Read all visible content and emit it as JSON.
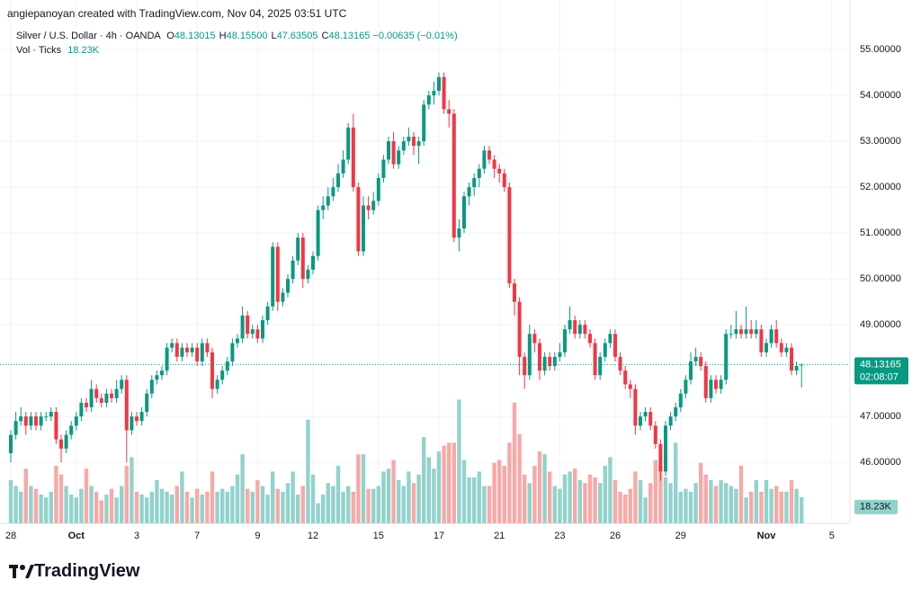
{
  "header": {
    "credit": "angiepanoyan created with TradingView.com, Nov 04, 2025 03:51 UTC",
    "symbol": "Silver / U.S. Dollar · 4h · OANDA",
    "ohlc": [
      {
        "label": "O",
        "value": "48.13015"
      },
      {
        "label": "H",
        "value": "48.15500"
      },
      {
        "label": "L",
        "value": "47.63505"
      },
      {
        "label": "C",
        "value": "48.13165"
      }
    ],
    "change": "−0.00635 (−0.01%)",
    "volume_label": "Vol · Ticks",
    "volume_value": "18.23K"
  },
  "chart_data": {
    "type": "candlestick",
    "categories": [
      "28",
      null,
      null,
      null,
      null,
      null,
      null,
      null,
      null,
      null,
      null,
      null,
      null,
      "Oct",
      null,
      null,
      null,
      null,
      null,
      null,
      null,
      null,
      null,
      null,
      null,
      "3",
      null,
      null,
      null,
      null,
      null,
      null,
      null,
      null,
      null,
      null,
      null,
      "7",
      null,
      null,
      null,
      null,
      null,
      null,
      null,
      null,
      null,
      null,
      null,
      "9",
      null,
      null,
      null,
      null,
      null,
      null,
      null,
      null,
      null,
      null,
      "12",
      null,
      null,
      null,
      null,
      null,
      null,
      null,
      null,
      null,
      null,
      null,
      null,
      "15",
      null,
      null,
      null,
      null,
      null,
      null,
      null,
      null,
      null,
      null,
      null,
      "17",
      null,
      null,
      null,
      null,
      null,
      null,
      null,
      null,
      null,
      null,
      null,
      "21",
      null,
      null,
      null,
      null,
      null,
      null,
      null,
      null,
      null,
      null,
      null,
      "23",
      null,
      null,
      null,
      null,
      null,
      null,
      null,
      null,
      null,
      null,
      "26",
      null,
      null,
      null,
      null,
      null,
      null,
      null,
      null,
      null,
      null,
      null,
      null,
      "29",
      null,
      null,
      null,
      null,
      null,
      null,
      null,
      null,
      null,
      null,
      null,
      null,
      null,
      null,
      null,
      null,
      "Nov",
      null,
      null,
      null,
      null,
      null,
      null,
      null,
      null,
      null,
      null,
      null,
      null,
      "5",
      null,
      null,
      null
    ],
    "candles": [
      [
        46.2,
        46.7,
        46.0,
        46.6
      ],
      [
        46.6,
        47.1,
        46.5,
        46.9
      ],
      [
        46.9,
        47.2,
        46.8,
        47.0
      ],
      [
        47.0,
        47.1,
        46.6,
        46.8
      ],
      [
        46.8,
        47.1,
        46.7,
        47.0
      ],
      [
        47.0,
        47.1,
        46.7,
        46.8
      ],
      [
        46.8,
        47.1,
        46.7,
        47.0
      ],
      [
        47.0,
        47.1,
        46.9,
        47.0
      ],
      [
        47.0,
        47.2,
        46.9,
        47.1
      ],
      [
        47.1,
        47.2,
        46.4,
        46.5
      ],
      [
        46.5,
        46.6,
        46.0,
        46.3
      ],
      [
        46.3,
        46.7,
        46.2,
        46.6
      ],
      [
        46.6,
        46.9,
        46.5,
        46.8
      ],
      [
        46.8,
        47.1,
        46.7,
        47.0
      ],
      [
        47.0,
        47.4,
        46.9,
        47.3
      ],
      [
        47.3,
        47.4,
        47.1,
        47.2
      ],
      [
        47.2,
        47.8,
        47.1,
        47.6
      ],
      [
        47.6,
        47.7,
        47.3,
        47.4
      ],
      [
        47.4,
        47.5,
        47.2,
        47.3
      ],
      [
        47.3,
        47.6,
        47.2,
        47.5
      ],
      [
        47.5,
        47.6,
        47.3,
        47.4
      ],
      [
        47.4,
        47.8,
        47.3,
        47.6
      ],
      [
        47.6,
        47.9,
        47.5,
        47.8
      ],
      [
        47.8,
        47.9,
        46.0,
        46.7
      ],
      [
        46.7,
        47.1,
        46.6,
        47.0
      ],
      [
        47.0,
        47.1,
        46.8,
        46.9
      ],
      [
        46.9,
        47.2,
        46.8,
        47.1
      ],
      [
        47.1,
        47.6,
        47.0,
        47.5
      ],
      [
        47.5,
        47.9,
        47.4,
        47.8
      ],
      [
        47.8,
        48.0,
        47.7,
        47.9
      ],
      [
        47.9,
        48.1,
        47.8,
        48.0
      ],
      [
        48.0,
        48.6,
        47.9,
        48.5
      ],
      [
        48.5,
        48.7,
        48.4,
        48.6
      ],
      [
        48.6,
        48.7,
        48.2,
        48.3
      ],
      [
        48.3,
        48.6,
        48.2,
        48.5
      ],
      [
        48.5,
        48.6,
        48.3,
        48.4
      ],
      [
        48.4,
        48.6,
        48.3,
        48.5
      ],
      [
        48.5,
        48.6,
        48.1,
        48.2
      ],
      [
        48.2,
        48.7,
        48.1,
        48.6
      ],
      [
        48.6,
        48.7,
        48.3,
        48.4
      ],
      [
        48.4,
        48.5,
        47.4,
        47.6
      ],
      [
        47.6,
        47.9,
        47.5,
        47.8
      ],
      [
        47.8,
        48.1,
        47.7,
        48.0
      ],
      [
        48.0,
        48.3,
        47.9,
        48.2
      ],
      [
        48.2,
        48.7,
        48.1,
        48.6
      ],
      [
        48.6,
        48.8,
        48.5,
        48.7
      ],
      [
        48.7,
        49.4,
        48.6,
        49.2
      ],
      [
        49.2,
        49.3,
        48.7,
        48.8
      ],
      [
        48.8,
        49.0,
        48.7,
        48.9
      ],
      [
        48.9,
        49.0,
        48.6,
        48.7
      ],
      [
        48.7,
        49.2,
        48.6,
        49.1
      ],
      [
        49.1,
        49.5,
        49.0,
        49.4
      ],
      [
        49.4,
        50.8,
        49.3,
        50.7
      ],
      [
        50.7,
        50.8,
        49.3,
        49.5
      ],
      [
        49.5,
        49.8,
        49.4,
        49.7
      ],
      [
        49.7,
        50.1,
        49.6,
        50.0
      ],
      [
        50.0,
        50.5,
        49.9,
        50.4
      ],
      [
        50.4,
        51.0,
        50.3,
        50.9
      ],
      [
        50.9,
        51.0,
        49.8,
        50.0
      ],
      [
        50.0,
        50.3,
        49.9,
        50.2
      ],
      [
        50.2,
        50.6,
        50.1,
        50.5
      ],
      [
        50.5,
        51.6,
        50.4,
        51.5
      ],
      [
        51.5,
        51.8,
        51.3,
        51.6
      ],
      [
        51.6,
        52.0,
        51.5,
        51.8
      ],
      [
        51.8,
        52.2,
        51.7,
        52.0
      ],
      [
        52.0,
        52.5,
        51.9,
        52.3
      ],
      [
        52.3,
        52.8,
        52.2,
        52.6
      ],
      [
        52.6,
        53.4,
        52.5,
        53.3
      ],
      [
        53.3,
        53.6,
        51.9,
        52.0
      ],
      [
        52.0,
        52.1,
        50.5,
        50.6
      ],
      [
        50.6,
        51.8,
        50.5,
        51.6
      ],
      [
        51.6,
        51.8,
        51.3,
        51.5
      ],
      [
        51.5,
        51.9,
        51.4,
        51.7
      ],
      [
        51.7,
        52.3,
        51.6,
        52.2
      ],
      [
        52.2,
        52.7,
        52.1,
        52.6
      ],
      [
        52.6,
        53.1,
        52.5,
        53.0
      ],
      [
        53.0,
        53.2,
        52.4,
        52.5
      ],
      [
        52.5,
        52.9,
        52.4,
        52.8
      ],
      [
        52.8,
        53.1,
        52.7,
        53.0
      ],
      [
        53.0,
        53.3,
        52.9,
        53.1
      ],
      [
        53.1,
        53.2,
        52.7,
        52.9
      ],
      [
        52.9,
        53.1,
        52.5,
        53.0
      ],
      [
        53.0,
        53.9,
        52.9,
        53.8
      ],
      [
        53.8,
        54.1,
        53.7,
        54.0
      ],
      [
        54.0,
        54.3,
        53.8,
        54.1
      ],
      [
        54.1,
        54.5,
        54.0,
        54.4
      ],
      [
        54.4,
        54.5,
        53.6,
        53.7
      ],
      [
        53.7,
        53.9,
        53.3,
        53.6
      ],
      [
        53.6,
        53.7,
        50.8,
        50.9
      ],
      [
        50.9,
        51.3,
        50.6,
        51.1
      ],
      [
        51.1,
        51.9,
        51.0,
        51.8
      ],
      [
        51.8,
        52.1,
        51.6,
        52.0
      ],
      [
        52.0,
        52.3,
        51.8,
        52.2
      ],
      [
        52.2,
        52.5,
        52.0,
        52.4
      ],
      [
        52.4,
        52.9,
        52.3,
        52.8
      ],
      [
        52.8,
        52.9,
        52.5,
        52.6
      ],
      [
        52.6,
        52.7,
        52.2,
        52.4
      ],
      [
        52.4,
        52.5,
        52.1,
        52.3
      ],
      [
        52.3,
        52.4,
        51.9,
        52.0
      ],
      [
        52.0,
        52.1,
        49.8,
        49.9
      ],
      [
        49.9,
        50.0,
        49.2,
        49.5
      ],
      [
        49.5,
        49.6,
        47.9,
        48.3
      ],
      [
        48.3,
        48.4,
        47.6,
        47.9
      ],
      [
        47.9,
        49.0,
        47.8,
        48.8
      ],
      [
        48.8,
        48.9,
        48.4,
        48.6
      ],
      [
        48.6,
        48.7,
        47.8,
        48.0
      ],
      [
        48.0,
        48.4,
        47.9,
        48.3
      ],
      [
        48.3,
        48.4,
        48.0,
        48.1
      ],
      [
        48.1,
        48.4,
        48.0,
        48.3
      ],
      [
        48.3,
        48.6,
        48.2,
        48.4
      ],
      [
        48.4,
        49.0,
        48.3,
        48.9
      ],
      [
        48.9,
        49.4,
        48.8,
        49.1
      ],
      [
        49.1,
        49.2,
        48.7,
        48.8
      ],
      [
        48.8,
        49.1,
        48.7,
        49.0
      ],
      [
        49.0,
        49.1,
        48.7,
        48.8
      ],
      [
        48.8,
        48.9,
        48.5,
        48.6
      ],
      [
        48.6,
        48.7,
        47.8,
        47.9
      ],
      [
        47.9,
        48.4,
        47.8,
        48.3
      ],
      [
        48.3,
        48.7,
        48.2,
        48.6
      ],
      [
        48.6,
        48.9,
        48.5,
        48.8
      ],
      [
        48.8,
        48.9,
        48.2,
        48.3
      ],
      [
        48.3,
        48.4,
        47.9,
        48.0
      ],
      [
        48.0,
        48.1,
        47.6,
        47.7
      ],
      [
        47.7,
        47.8,
        47.4,
        47.6
      ],
      [
        47.6,
        47.7,
        46.6,
        46.8
      ],
      [
        46.8,
        47.1,
        46.7,
        47.0
      ],
      [
        47.0,
        47.2,
        46.9,
        47.1
      ],
      [
        47.1,
        47.2,
        46.7,
        46.8
      ],
      [
        46.8,
        46.9,
        46.3,
        46.4
      ],
      [
        46.4,
        46.5,
        45.6,
        45.8
      ],
      [
        45.8,
        46.9,
        45.7,
        46.8
      ],
      [
        46.8,
        47.1,
        46.7,
        47.0
      ],
      [
        47.0,
        47.3,
        46.9,
        47.2
      ],
      [
        47.2,
        47.6,
        47.1,
        47.5
      ],
      [
        47.5,
        47.9,
        47.4,
        47.8
      ],
      [
        47.8,
        48.4,
        47.7,
        48.2
      ],
      [
        48.2,
        48.5,
        48.1,
        48.3
      ],
      [
        48.3,
        48.4,
        48.0,
        48.1
      ],
      [
        48.1,
        48.2,
        47.3,
        47.4
      ],
      [
        47.4,
        47.9,
        47.3,
        47.8
      ],
      [
        47.8,
        47.9,
        47.5,
        47.6
      ],
      [
        47.6,
        47.9,
        47.5,
        47.8
      ],
      [
        47.8,
        48.9,
        47.7,
        48.8
      ],
      [
        48.8,
        49.0,
        48.7,
        48.8
      ],
      [
        48.8,
        49.3,
        48.7,
        48.9
      ],
      [
        48.9,
        49.0,
        48.7,
        48.8
      ],
      [
        48.8,
        49.4,
        48.7,
        48.9
      ],
      [
        48.9,
        49.1,
        48.7,
        48.8
      ],
      [
        48.8,
        49.1,
        48.7,
        48.9
      ],
      [
        48.9,
        49.0,
        48.3,
        48.4
      ],
      [
        48.4,
        48.7,
        48.3,
        48.6
      ],
      [
        48.6,
        49.0,
        48.5,
        48.9
      ],
      [
        48.9,
        49.1,
        48.5,
        48.6
      ],
      [
        48.6,
        48.7,
        48.3,
        48.4
      ],
      [
        48.4,
        48.6,
        48.3,
        48.5
      ],
      [
        48.5,
        48.6,
        47.9,
        48.0
      ],
      [
        48.0,
        48.2,
        47.9,
        48.1
      ],
      [
        48.13015,
        48.155,
        47.63505,
        48.13165
      ],
      null,
      null,
      null,
      null,
      null,
      null,
      null,
      null,
      null
    ],
    "volume": [
      30,
      26,
      22,
      38,
      26,
      24,
      20,
      18,
      22,
      40,
      34,
      26,
      20,
      18,
      24,
      38,
      26,
      22,
      16,
      20,
      24,
      18,
      26,
      40,
      46,
      22,
      20,
      18,
      22,
      30,
      24,
      22,
      20,
      26,
      36,
      22,
      18,
      24,
      20,
      22,
      36,
      22,
      24,
      22,
      26,
      34,
      48,
      24,
      22,
      30,
      26,
      20,
      36,
      24,
      22,
      28,
      36,
      20,
      26,
      72,
      34,
      14,
      20,
      28,
      26,
      40,
      22,
      26,
      22,
      48,
      48,
      24,
      24,
      26,
      36,
      38,
      44,
      30,
      26,
      36,
      28,
      34,
      60,
      46,
      38,
      50,
      54,
      56,
      56,
      86,
      44,
      32,
      32,
      36,
      26,
      26,
      42,
      44,
      40,
      56,
      84,
      62,
      34,
      28,
      40,
      50,
      48,
      36,
      26,
      24,
      34,
      36,
      38,
      30,
      28,
      34,
      32,
      28,
      40,
      46,
      30,
      22,
      20,
      24,
      36,
      30,
      18,
      28,
      44,
      40,
      32,
      28,
      56,
      22,
      24,
      22,
      28,
      42,
      34,
      30,
      26,
      30,
      28,
      26,
      24,
      40,
      18,
      22,
      30,
      22,
      30,
      24,
      26,
      22,
      22,
      30,
      24,
      18.23,
      null,
      null,
      null,
      null,
      null,
      null,
      null,
      null,
      null
    ],
    "ylim": [
      44.67,
      55.59
    ],
    "yticks": [
      {
        "value": 46,
        "label": "46.00000"
      },
      {
        "value": 47,
        "label": "47.00000"
      },
      {
        "value": 49,
        "label": "49.00000"
      },
      {
        "value": 50,
        "label": "50.00000"
      },
      {
        "value": 51,
        "label": "51.00000"
      },
      {
        "value": 52,
        "label": "52.00000"
      },
      {
        "value": 53,
        "label": "53.00000"
      },
      {
        "value": 54,
        "label": "54.00000"
      },
      {
        "value": 55,
        "label": "55.00000"
      }
    ],
    "volume_lim": [
      0,
      348
    ],
    "last_price": 48.13165,
    "countdown": "02:08:07",
    "grid": true,
    "up_color": "#089981",
    "down_color": "#f23645",
    "volume_up_color": "#92d2cc",
    "volume_down_color": "#f7a9a7"
  },
  "footer": {
    "logo": "TradingView"
  }
}
